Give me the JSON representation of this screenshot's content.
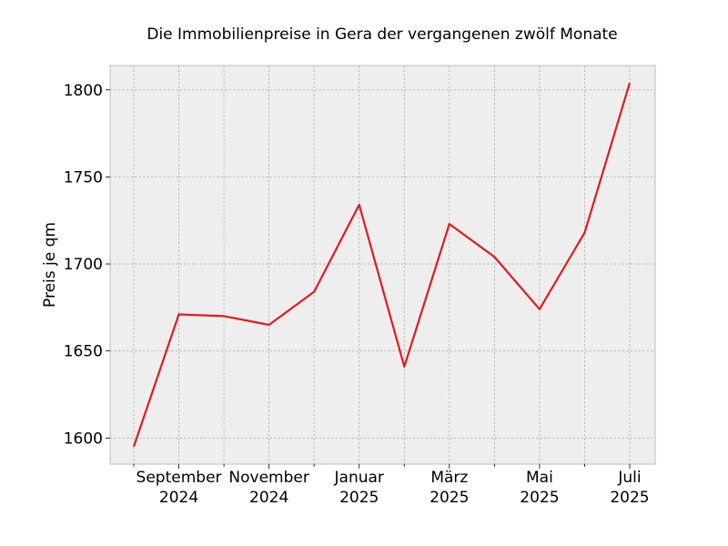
{
  "chart_data": {
    "type": "line",
    "title": "Die Immobilienpreise in Gera der vergangenen zwölf Monate",
    "xlabel": "",
    "ylabel": "Preis je qm",
    "x": [
      "2024-08",
      "2024-09",
      "2024-10",
      "2024-11",
      "2024-12",
      "2025-01",
      "2025-02",
      "2025-03",
      "2025-04",
      "2025-05",
      "2025-06",
      "2025-07"
    ],
    "x_tick_labels": [
      {
        "x": "2024-09",
        "line1": "September",
        "line2": "2024"
      },
      {
        "x": "2024-11",
        "line1": "November",
        "line2": "2024"
      },
      {
        "x": "2025-01",
        "line1": "Januar",
        "line2": "2025"
      },
      {
        "x": "2025-03",
        "line1": "März",
        "line2": "2025"
      },
      {
        "x": "2025-05",
        "line1": "Mai",
        "line2": "2025"
      },
      {
        "x": "2025-07",
        "line1": "Juli",
        "line2": "2025"
      }
    ],
    "series": [
      {
        "values": [
          1595,
          1671,
          1670,
          1665,
          1684,
          1734,
          1641,
          1723,
          1704,
          1674,
          1718,
          1804
        ],
        "color": "#e41a1c"
      }
    ],
    "yticks": [
      1600,
      1650,
      1700,
      1750,
      1800
    ],
    "ylim": [
      1585,
      1814
    ],
    "grid": true,
    "background": "#eeeeee"
  }
}
